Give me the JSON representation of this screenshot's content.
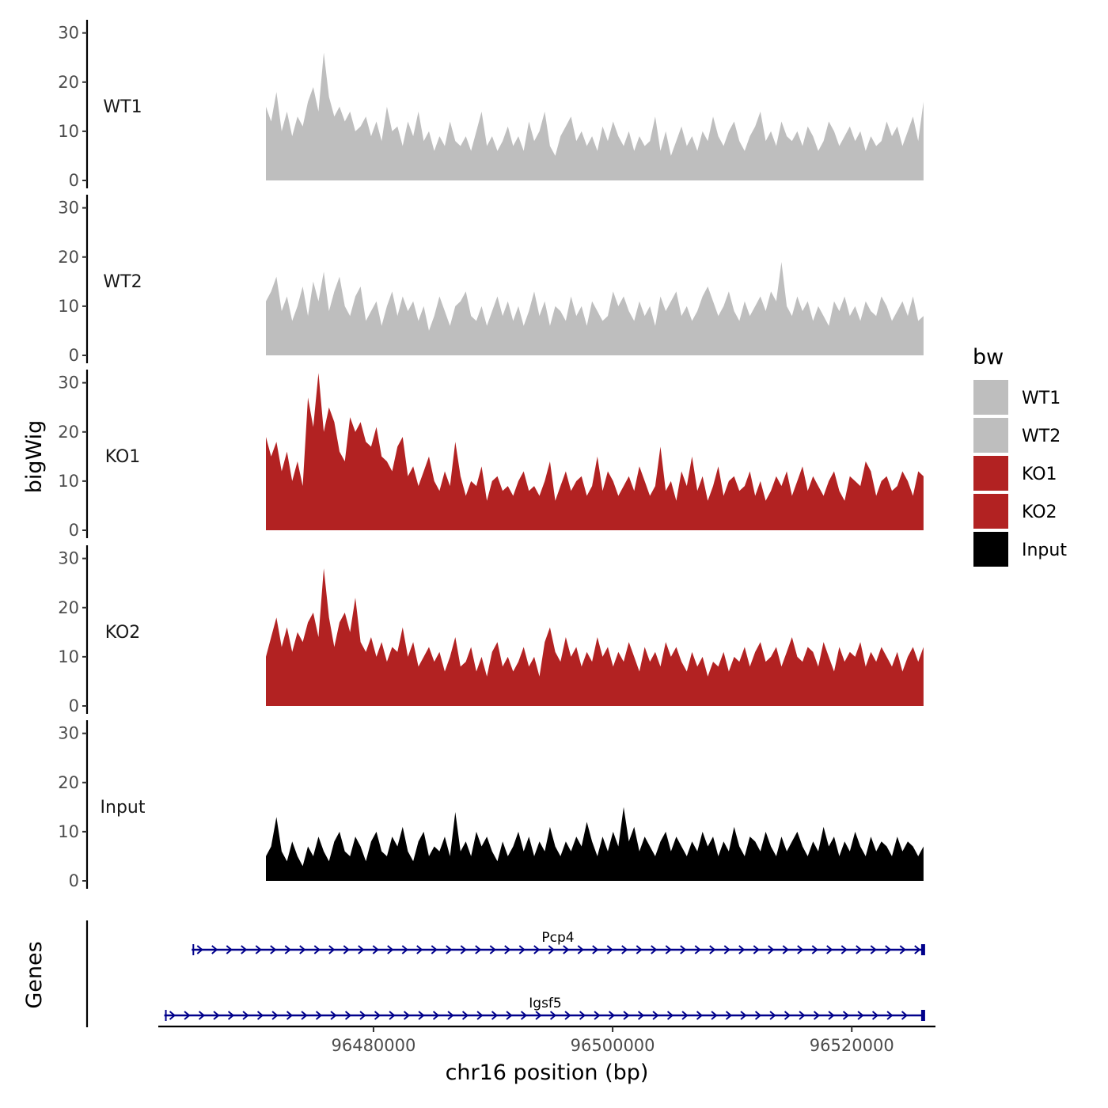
{
  "chart_data": {
    "type": "area",
    "ylabel": "bigWig",
    "xlabel": "chr16 position (bp)",
    "xlim": [
      96462000,
      96527000
    ],
    "ylim": [
      0,
      33
    ],
    "y_ticks": [
      0,
      10,
      20,
      30
    ],
    "x_ticks": [
      96480000,
      96500000,
      96520000
    ],
    "x_tick_labels": [
      "96480000",
      "96500000",
      "96520000"
    ],
    "signal_range": [
      96471000,
      96526000
    ],
    "legend": {
      "title": "bw",
      "position": "right",
      "entries": [
        {
          "label": "WT1",
          "color": "#BEBEBE"
        },
        {
          "label": "WT2",
          "color": "#BEBEBE"
        },
        {
          "label": "KO1",
          "color": "#B22222"
        },
        {
          "label": "KO2",
          "color": "#B22222"
        },
        {
          "label": "Input",
          "color": "#000000"
        }
      ]
    },
    "tracks": [
      {
        "name": "WT1",
        "color": "#BEBEBE",
        "values": [
          15,
          12,
          18,
          10,
          14,
          9,
          13,
          11,
          16,
          19,
          14,
          26,
          17,
          13,
          15,
          12,
          14,
          10,
          11,
          13,
          9,
          12,
          8,
          15,
          10,
          11,
          7,
          12,
          9,
          14,
          8,
          10,
          6,
          9,
          7,
          12,
          8,
          7,
          9,
          6,
          10,
          14,
          7,
          9,
          6,
          8,
          11,
          7,
          9,
          6,
          12,
          8,
          10,
          14,
          7,
          5,
          9,
          11,
          13,
          8,
          10,
          7,
          9,
          6,
          11,
          8,
          12,
          9,
          7,
          10,
          6,
          9,
          7,
          8,
          13,
          6,
          10,
          5,
          8,
          11,
          7,
          9,
          6,
          10,
          8,
          13,
          9,
          7,
          10,
          12,
          8,
          6,
          9,
          11,
          14,
          8,
          10,
          7,
          12,
          9,
          8,
          10,
          7,
          11,
          9,
          6,
          8,
          12,
          10,
          7,
          9,
          11,
          8,
          10,
          6,
          9,
          7,
          8,
          12,
          9,
          11,
          7,
          10,
          13,
          8,
          16
        ]
      },
      {
        "name": "WT2",
        "color": "#BEBEBE",
        "values": [
          11,
          13,
          16,
          9,
          12,
          7,
          10,
          14,
          8,
          15,
          11,
          17,
          9,
          13,
          16,
          10,
          8,
          12,
          14,
          7,
          9,
          11,
          6,
          10,
          13,
          8,
          12,
          9,
          11,
          7,
          10,
          5,
          8,
          12,
          9,
          6,
          10,
          11,
          13,
          8,
          7,
          10,
          6,
          9,
          12,
          8,
          11,
          7,
          10,
          6,
          9,
          13,
          8,
          11,
          6,
          10,
          9,
          7,
          12,
          8,
          10,
          6,
          11,
          9,
          7,
          8,
          13,
          10,
          12,
          9,
          7,
          11,
          8,
          10,
          6,
          12,
          9,
          11,
          13,
          8,
          10,
          7,
          9,
          12,
          14,
          11,
          8,
          10,
          13,
          9,
          7,
          11,
          8,
          10,
          12,
          9,
          13,
          11,
          19,
          10,
          8,
          12,
          9,
          11,
          7,
          10,
          8,
          6,
          11,
          9,
          12,
          8,
          10,
          7,
          11,
          9,
          8,
          12,
          10,
          7,
          9,
          11,
          8,
          12,
          7,
          8
        ]
      },
      {
        "name": "KO1",
        "color": "#B22222",
        "values": [
          19,
          15,
          18,
          12,
          16,
          10,
          14,
          9,
          27,
          21,
          32,
          20,
          25,
          22,
          16,
          14,
          23,
          20,
          22,
          18,
          17,
          21,
          15,
          14,
          12,
          17,
          19,
          11,
          13,
          9,
          12,
          15,
          10,
          8,
          12,
          9,
          18,
          11,
          7,
          10,
          9,
          13,
          6,
          10,
          11,
          8,
          9,
          7,
          10,
          12,
          8,
          9,
          7,
          10,
          14,
          6,
          9,
          12,
          8,
          10,
          11,
          7,
          9,
          15,
          8,
          12,
          10,
          7,
          9,
          11,
          8,
          13,
          10,
          7,
          9,
          17,
          8,
          10,
          6,
          12,
          9,
          15,
          8,
          11,
          6,
          9,
          13,
          7,
          10,
          11,
          8,
          9,
          12,
          7,
          10,
          6,
          8,
          11,
          9,
          12,
          7,
          10,
          13,
          8,
          11,
          9,
          7,
          10,
          12,
          8,
          6,
          11,
          10,
          9,
          14,
          12,
          7,
          10,
          11,
          8,
          9,
          12,
          10,
          7,
          12,
          11
        ]
      },
      {
        "name": "KO2",
        "color": "#B22222",
        "values": [
          10,
          14,
          18,
          12,
          16,
          11,
          15,
          13,
          17,
          19,
          14,
          28,
          18,
          12,
          17,
          19,
          15,
          22,
          13,
          11,
          14,
          10,
          13,
          9,
          12,
          11,
          16,
          10,
          13,
          8,
          10,
          12,
          9,
          11,
          7,
          10,
          14,
          8,
          9,
          12,
          7,
          10,
          6,
          11,
          13,
          8,
          10,
          7,
          9,
          12,
          8,
          10,
          6,
          13,
          16,
          11,
          9,
          14,
          10,
          12,
          8,
          11,
          9,
          14,
          10,
          12,
          8,
          11,
          9,
          13,
          10,
          7,
          12,
          9,
          11,
          8,
          13,
          10,
          12,
          9,
          7,
          11,
          8,
          10,
          6,
          9,
          8,
          11,
          7,
          10,
          9,
          12,
          8,
          11,
          13,
          9,
          10,
          12,
          8,
          11,
          14,
          10,
          9,
          12,
          11,
          8,
          13,
          10,
          7,
          12,
          9,
          11,
          10,
          13,
          8,
          11,
          9,
          12,
          10,
          8,
          11,
          7,
          10,
          12,
          9,
          12
        ]
      },
      {
        "name": "Input",
        "color": "#000000",
        "values": [
          5,
          7,
          13,
          6,
          4,
          8,
          5,
          3,
          7,
          5,
          9,
          6,
          4,
          8,
          10,
          6,
          5,
          9,
          7,
          4,
          8,
          10,
          6,
          5,
          9,
          7,
          11,
          6,
          4,
          8,
          10,
          5,
          7,
          6,
          9,
          5,
          14,
          6,
          8,
          5,
          10,
          7,
          9,
          6,
          4,
          8,
          5,
          7,
          10,
          6,
          9,
          5,
          8,
          6,
          11,
          7,
          5,
          8,
          6,
          9,
          7,
          12,
          8,
          5,
          9,
          6,
          10,
          7,
          15,
          8,
          11,
          6,
          9,
          7,
          5,
          8,
          10,
          6,
          9,
          7,
          5,
          8,
          6,
          10,
          7,
          9,
          5,
          8,
          6,
          11,
          7,
          5,
          9,
          8,
          6,
          10,
          7,
          5,
          9,
          6,
          8,
          10,
          7,
          5,
          8,
          6,
          11,
          7,
          9,
          5,
          8,
          6,
          10,
          7,
          5,
          9,
          6,
          8,
          7,
          5,
          9,
          6,
          8,
          7,
          5,
          7
        ]
      }
    ],
    "genes": [
      {
        "name": "Pcp4",
        "start": 96464800,
        "end": 96526000,
        "strand": "+"
      },
      {
        "name": "Igsf5",
        "start": 96462500,
        "end": 96526000,
        "strand": "+"
      }
    ],
    "genes_ylabel": "Genes"
  }
}
